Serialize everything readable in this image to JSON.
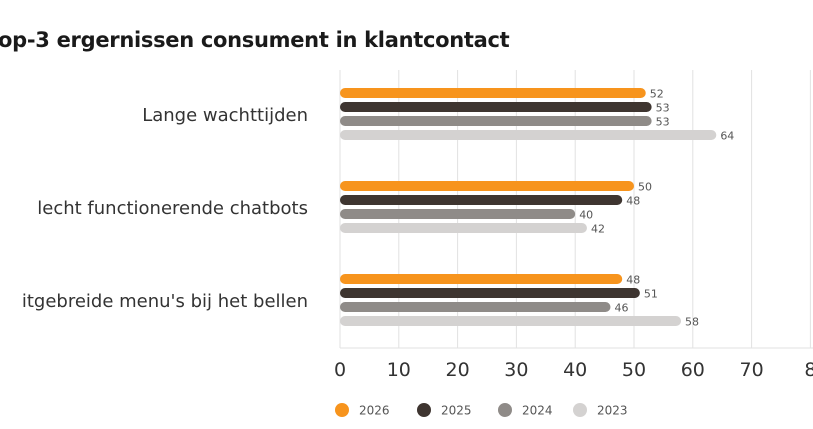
{
  "chart_data": {
    "type": "bar",
    "orientation": "horizontal",
    "title": "op-3 ergernissen consument in klantcontact",
    "categories": [
      "Lange wachttijden",
      "lecht functionerende chatbots",
      "itgebreide menu's bij het bellen"
    ],
    "series": [
      {
        "name": "2026",
        "color": "#f7941d",
        "values": [
          52,
          50,
          48
        ]
      },
      {
        "name": "2025",
        "color": "#3e3530",
        "values": [
          53,
          48,
          51
        ]
      },
      {
        "name": "2024",
        "color": "#8f8b88",
        "values": [
          53,
          40,
          46
        ]
      },
      {
        "name": "2023",
        "color": "#d4d2d1",
        "values": [
          64,
          42,
          58
        ]
      }
    ],
    "xlim": [
      0,
      80
    ],
    "xticks": [
      "0",
      "10",
      "20",
      "30",
      "40",
      "50",
      "60",
      "70",
      "8"
    ],
    "grid": true,
    "legend_position": "bottom-left",
    "data_labels": true
  }
}
